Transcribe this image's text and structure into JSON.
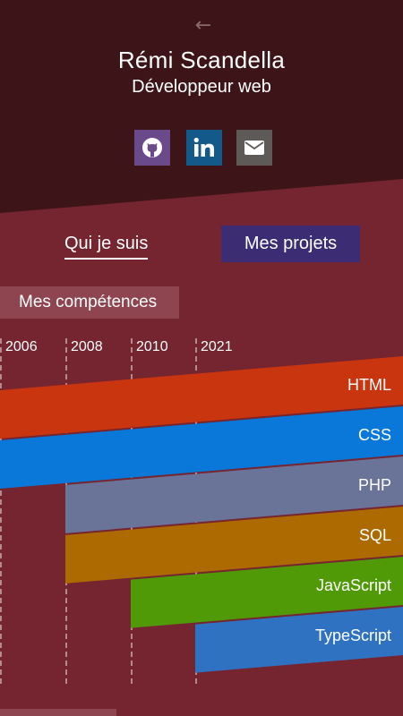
{
  "header": {
    "back_icon": "arrow-left-icon",
    "name": "Rémi Scandella",
    "role": "Développeur web",
    "social": [
      {
        "icon": "github-icon",
        "color": "#6a4a8a"
      },
      {
        "icon": "linkedin-icon",
        "color": "#135a8a"
      },
      {
        "icon": "mail-icon",
        "color": "#5e5a58"
      }
    ]
  },
  "nav": {
    "who": "Qui je suis",
    "projects": "Mes projets"
  },
  "skills": {
    "title": "Mes compétences",
    "years": [
      "2006",
      "2008",
      "2010",
      "2021"
    ],
    "items": [
      {
        "label": "HTML",
        "color": "#c9350e",
        "start_year": "2006"
      },
      {
        "label": "CSS",
        "color": "#0a78d8",
        "start_year": "2006"
      },
      {
        "label": "PHP",
        "color": "#6a7398",
        "start_year": "2008"
      },
      {
        "label": "SQL",
        "color": "#ad6a00",
        "start_year": "2008"
      },
      {
        "label": "JavaScript",
        "color": "#4f9a06",
        "start_year": "2010"
      },
      {
        "label": "TypeScript",
        "color": "#2f72c2",
        "start_year": "2021"
      }
    ]
  }
}
